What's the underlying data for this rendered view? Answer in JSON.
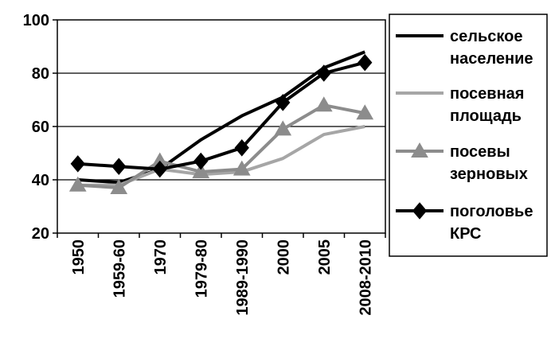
{
  "chart_data": {
    "type": "line",
    "categories": [
      "1950",
      "1959-60",
      "1970",
      "1979-80",
      "1989-1990",
      "2000",
      "2005",
      "2008-2010"
    ],
    "ylim": [
      20,
      100
    ],
    "yticks": [
      "20",
      "40",
      "60",
      "80",
      "100"
    ],
    "grid": "horizontal",
    "legend_position": "right",
    "series": [
      {
        "name_lines": [
          "сельское",
          "население"
        ],
        "color": "#000000",
        "marker": "none",
        "values": [
          40,
          39,
          44,
          55,
          64,
          71,
          82,
          88
        ]
      },
      {
        "name_lines": [
          "посевная",
          "площадь"
        ],
        "color": "#a6a6a6",
        "marker": "none",
        "values": [
          38,
          38,
          44,
          42,
          43,
          48,
          57,
          60
        ]
      },
      {
        "name_lines": [
          "посевы",
          "зерновых"
        ],
        "color": "#8c8c8c",
        "marker": "triangle",
        "values": [
          38,
          37,
          47,
          43,
          44,
          59,
          68,
          65
        ]
      },
      {
        "name_lines": [
          "поголовье",
          "КРС"
        ],
        "color": "#000000",
        "marker": "diamond",
        "values": [
          46,
          45,
          44,
          47,
          52,
          69,
          80,
          84
        ]
      }
    ]
  }
}
